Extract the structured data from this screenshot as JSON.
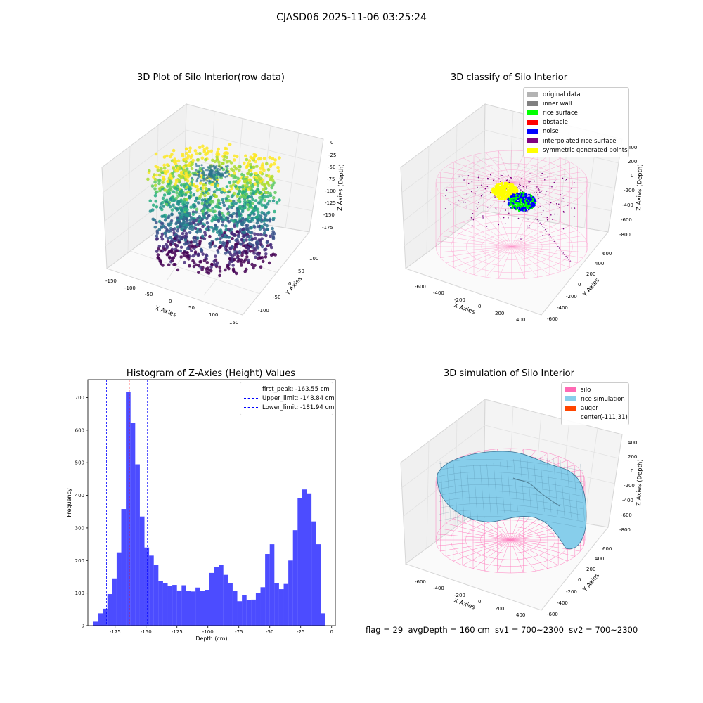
{
  "suptitle": "CJASD06 2025-11-06 03:25:24",
  "panels": {
    "raw": {
      "title": "3D Plot of Silo Interior(row data)",
      "xlabel": "X Axies",
      "ylabel": "Y Axies",
      "zlabel": "Z Axies (Depth)",
      "xticks": [
        "-150",
        "-100",
        "-50",
        "0",
        "50",
        "100",
        "150"
      ],
      "yticks": [
        "-100",
        "-50",
        "0",
        "50",
        "100"
      ],
      "zticks": [
        "0",
        "-25",
        "-50",
        "-75",
        "-100",
        "-125",
        "-150",
        "-175"
      ]
    },
    "classify": {
      "title": "3D classify of Silo Interior",
      "xlabel": "X Axies",
      "ylabel": "Y Axies",
      "zlabel": "Z Axies (Depth)",
      "xticks": [
        "-600",
        "-400",
        "-200",
        "0",
        "200",
        "400"
      ],
      "yticks": [
        "-600",
        "-400",
        "-200",
        "0",
        "200",
        "400",
        "600"
      ],
      "zticks": [
        "400",
        "200",
        "0",
        "-200",
        "-400",
        "-600",
        "-800"
      ],
      "legend": [
        {
          "label": "original data",
          "color": "#b3b3b3"
        },
        {
          "label": "inner wall",
          "color": "#808080"
        },
        {
          "label": "rice surface",
          "color": "#00ff00"
        },
        {
          "label": "obstacle",
          "color": "#ff0000"
        },
        {
          "label": "noise",
          "color": "#0000ff"
        },
        {
          "label": "interpolated rice surface",
          "color": "#800080"
        },
        {
          "label": "symmetric generated points",
          "color": "#ffff00"
        }
      ]
    },
    "simulation": {
      "title": "3D simulation of Silo Interior",
      "xlabel": "X Axies",
      "ylabel": "Y Axies",
      "zlabel": "Z Axies (Depth)",
      "xticks": [
        "-600",
        "-400",
        "-200",
        "0",
        "200",
        "400"
      ],
      "yticks": [
        "-600",
        "-400",
        "-200",
        "0",
        "200",
        "400",
        "600"
      ],
      "zticks": [
        "400",
        "200",
        "0",
        "-200",
        "-400",
        "-600",
        "-800"
      ],
      "legend": [
        {
          "label": "silo",
          "color": "#ff69b4"
        },
        {
          "label": "rice simulation",
          "color": "#87ceeb"
        },
        {
          "label": "auger",
          "color": "#ff4500"
        },
        {
          "label": "center(-111,31)",
          "color": ""
        }
      ]
    }
  },
  "footer": "flag = 29  avgDepth = 160 cm  sv1 = 700~2300  sv2 = 700~2300",
  "chart_data": {
    "type": "bar",
    "title": "Histogram of Z-Axies (Height) Values",
    "xlabel": "Depth (cm)",
    "ylabel": "Frequency",
    "xlim": [
      -197,
      3
    ],
    "ylim": [
      0,
      755
    ],
    "xticks": [
      -175,
      -150,
      -125,
      -100,
      -75,
      -50,
      -25,
      0
    ],
    "yticks": [
      0,
      100,
      200,
      300,
      400,
      500,
      600,
      700
    ],
    "bin_width": 3.75,
    "bin_start": -192.5,
    "color": "#0000ff",
    "values": [
      12,
      38,
      52,
      97,
      145,
      225,
      358,
      718,
      622,
      495,
      335,
      240,
      215,
      187,
      137,
      131,
      122,
      125,
      108,
      124,
      107,
      105,
      117,
      106,
      110,
      162,
      180,
      187,
      156,
      131,
      107,
      75,
      93,
      78,
      80,
      100,
      118,
      220,
      250,
      130,
      112,
      128,
      200,
      293,
      392,
      418,
      406,
      320,
      250,
      38
    ],
    "vlines": [
      {
        "label": "first_peak: -163.55 cm",
        "x": -163.55,
        "color": "#ff0000"
      },
      {
        "label": "Upper_limit: -148.84 cm",
        "x": -148.84,
        "color": "#0000ff"
      },
      {
        "label": "Lower_limit: -181.94 cm",
        "x": -181.94,
        "color": "#0000ff"
      }
    ]
  }
}
